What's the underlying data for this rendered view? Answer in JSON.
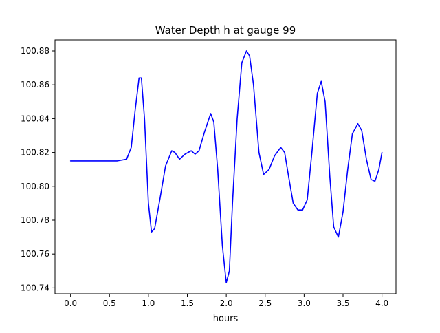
{
  "chart_data": {
    "type": "line",
    "title": "Water Depth h at gauge 99",
    "xlabel": "hours",
    "ylabel": "",
    "xlim": [
      -0.2,
      4.18
    ],
    "ylim": [
      100.7365,
      100.8865
    ],
    "grid": false,
    "xticks": [
      0.0,
      0.5,
      1.0,
      1.5,
      2.0,
      2.5,
      3.0,
      3.5,
      4.0
    ],
    "xtick_labels": [
      "0.0",
      "0.5",
      "1.0",
      "1.5",
      "2.0",
      "2.5",
      "3.0",
      "3.5",
      "4.0"
    ],
    "yticks": [
      100.74,
      100.76,
      100.78,
      100.8,
      100.82,
      100.84,
      100.86,
      100.88
    ],
    "ytick_labels": [
      "100.74",
      "100.76",
      "100.78",
      "100.80",
      "100.82",
      "100.84",
      "100.86",
      "100.88"
    ],
    "series": [
      {
        "color": "#0000ff",
        "x": [
          0.0,
          0.3,
          0.6,
          0.72,
          0.78,
          0.83,
          0.88,
          0.91,
          0.95,
          1.0,
          1.04,
          1.08,
          1.15,
          1.22,
          1.3,
          1.34,
          1.4,
          1.47,
          1.55,
          1.6,
          1.65,
          1.72,
          1.8,
          1.84,
          1.89,
          1.95,
          2.0,
          2.04,
          2.08,
          2.14,
          2.2,
          2.26,
          2.3,
          2.35,
          2.42,
          2.48,
          2.55,
          2.62,
          2.7,
          2.75,
          2.8,
          2.86,
          2.92,
          2.98,
          3.04,
          3.1,
          3.17,
          3.22,
          3.27,
          3.33,
          3.38,
          3.44,
          3.5,
          3.56,
          3.62,
          3.69,
          3.74,
          3.8,
          3.86,
          3.91,
          3.96,
          4.0
        ],
        "y": [
          100.815,
          100.815,
          100.815,
          100.816,
          100.823,
          100.845,
          100.864,
          100.864,
          100.84,
          100.79,
          100.773,
          100.775,
          100.793,
          100.812,
          100.821,
          100.82,
          100.816,
          100.819,
          100.821,
          100.819,
          100.821,
          100.832,
          100.843,
          100.838,
          100.81,
          100.765,
          100.743,
          100.75,
          100.79,
          100.84,
          100.873,
          100.88,
          100.877,
          100.86,
          100.82,
          100.807,
          100.81,
          100.818,
          100.823,
          100.82,
          100.806,
          100.79,
          100.786,
          100.786,
          100.792,
          100.82,
          100.855,
          100.862,
          100.85,
          100.806,
          100.776,
          100.77,
          100.785,
          100.81,
          100.831,
          100.837,
          100.833,
          100.816,
          100.804,
          100.803,
          100.81,
          100.82
        ]
      }
    ]
  }
}
